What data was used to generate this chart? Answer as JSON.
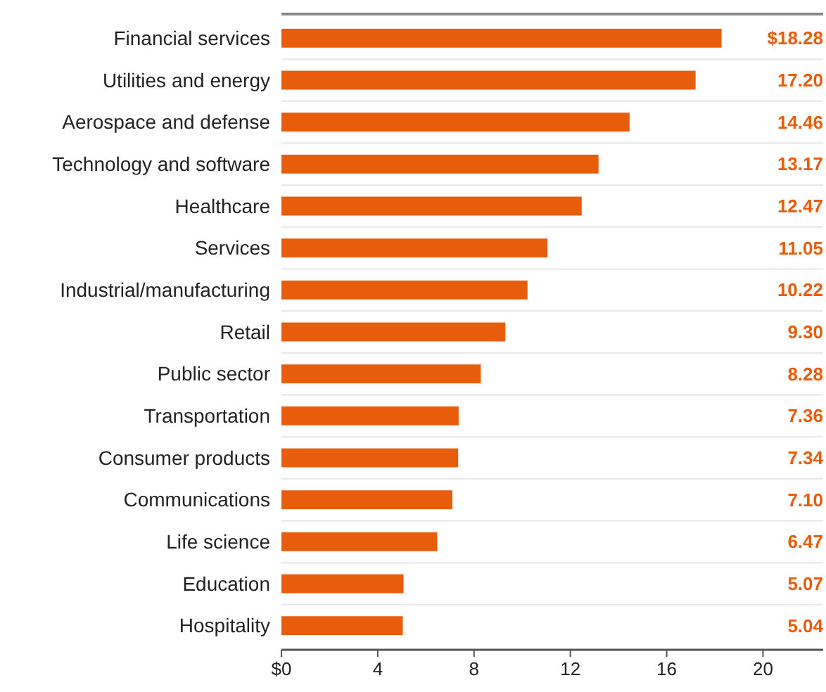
{
  "chart_data": {
    "type": "bar",
    "orientation": "horizontal",
    "categories": [
      "Financial services",
      "Utilities and energy",
      "Aerospace and defense",
      "Technology and software",
      "Healthcare",
      "Services",
      "Industrial/manufacturing",
      "Retail",
      "Public sector",
      "Transportation",
      "Consumer products",
      "Communications",
      "Life science",
      "Education",
      "Hospitality"
    ],
    "values": [
      18.28,
      17.2,
      14.46,
      13.17,
      12.47,
      11.05,
      10.22,
      9.3,
      8.28,
      7.36,
      7.34,
      7.1,
      6.47,
      5.07,
      5.04
    ],
    "value_labels": [
      "$18.28",
      "17.20",
      "14.46",
      "13.17",
      "12.47",
      "11.05",
      "10.22",
      "9.30",
      "8.28",
      "7.36",
      "7.34",
      "7.10",
      "6.47",
      "5.07",
      "5.04"
    ],
    "color": "#e85d0c",
    "xlim": [
      0,
      22.5
    ],
    "xticks": [
      {
        "value": 0,
        "label": "$0"
      },
      4,
      8,
      12,
      16,
      20
    ],
    "grid": false
  }
}
